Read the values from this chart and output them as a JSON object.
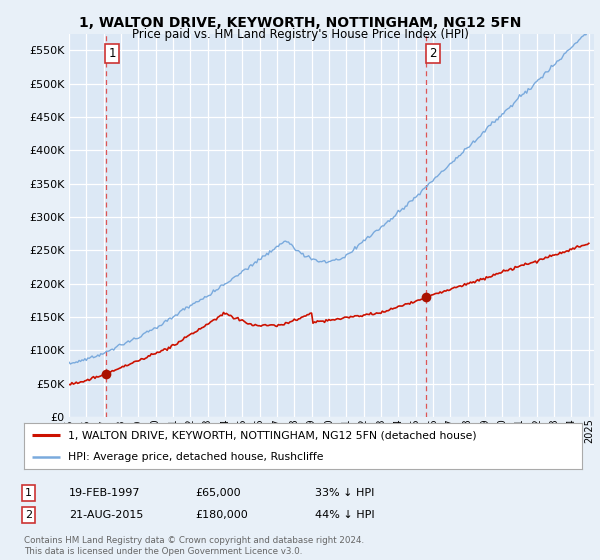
{
  "title": "1, WALTON DRIVE, KEYWORTH, NOTTINGHAM, NG12 5FN",
  "subtitle": "Price paid vs. HM Land Registry's House Price Index (HPI)",
  "background_color": "#e8f0f8",
  "plot_bg_color": "#dce8f5",
  "legend_line1": "1, WALTON DRIVE, KEYWORTH, NOTTINGHAM, NG12 5FN (detached house)",
  "legend_line2": "HPI: Average price, detached house, Rushcliffe",
  "sale1_date": "19-FEB-1997",
  "sale1_price": 65000,
  "sale1_label": "33% ↓ HPI",
  "sale2_date": "21-AUG-2015",
  "sale2_price": 180000,
  "sale2_label": "44% ↓ HPI",
  "footer": "Contains HM Land Registry data © Crown copyright and database right 2024.\nThis data is licensed under the Open Government Licence v3.0.",
  "hpi_color": "#7aaadd",
  "price_color": "#cc1100",
  "marker_color": "#aa1100",
  "dashed_color": "#dd5555",
  "ylim": [
    0,
    575000
  ],
  "yticks": [
    0,
    50000,
    100000,
    150000,
    200000,
    250000,
    300000,
    350000,
    400000,
    450000,
    500000,
    550000
  ],
  "sale1_x": 1997.12,
  "sale2_x": 2015.63,
  "xmin": 1995,
  "xmax": 2025.3
}
